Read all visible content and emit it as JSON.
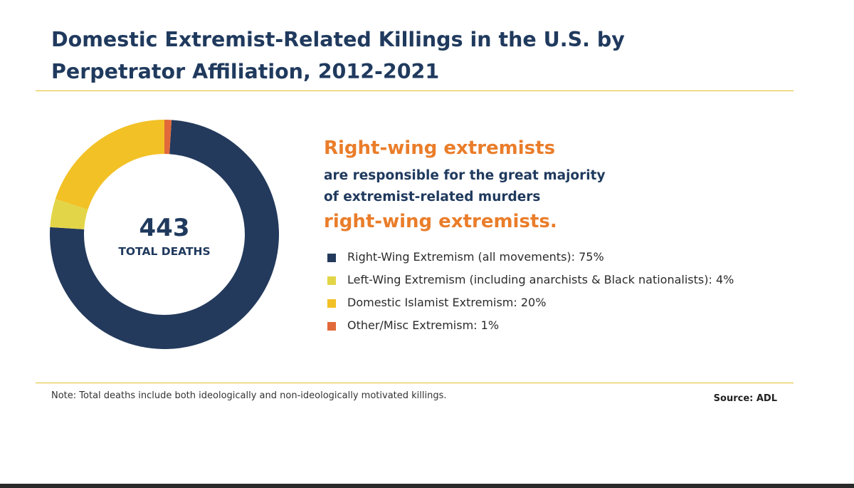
{
  "title": "Domestic Extremist-Related Killings in the U.S. by Perpetrator Affiliation, 2012-2021",
  "center": {
    "value": "443",
    "label": "TOTAL DEATHS"
  },
  "headline": {
    "line1": "Right-wing extremists",
    "line2": "are responsible for the great majority",
    "line3": "of extremist-related murders",
    "line4": "right-wing extremists."
  },
  "note": "Note: Total deaths include both ideologically and non-ideologically motivated killings.",
  "source": "Source: ADL",
  "colors": {
    "title": "#203a5e",
    "accent": "#ea7d2a",
    "rule": "#e2bf2c"
  },
  "chart_data": {
    "type": "pie",
    "title": "Domestic Extremist-Related Killings in the U.S. by Perpetrator Affiliation, 2012-2021",
    "total": 443,
    "slices": [
      {
        "label": "Right-Wing Extremism (all movements):  75%",
        "value": 75,
        "color": "#233a5c"
      },
      {
        "label": "Left-Wing Extremism (including anarchists & Black nationalists):  4%",
        "value": 4,
        "color": "#e3d548"
      },
      {
        "label": "Domestic Islamist Extremism: 20%",
        "value": 20,
        "color": "#f2c126"
      },
      {
        "label": "Other/Misc Extremism: 1%",
        "value": 1,
        "color": "#e2693a"
      }
    ]
  }
}
